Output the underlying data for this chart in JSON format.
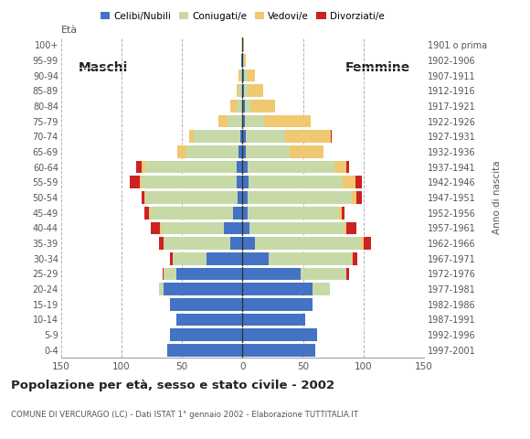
{
  "age_groups": [
    "0-4",
    "5-9",
    "10-14",
    "15-19",
    "20-24",
    "25-29",
    "30-34",
    "35-39",
    "40-44",
    "45-49",
    "50-54",
    "55-59",
    "60-64",
    "65-69",
    "70-74",
    "75-79",
    "80-84",
    "85-89",
    "90-94",
    "95-99",
    "100+"
  ],
  "birth_years": [
    "1997-2001",
    "1992-1996",
    "1987-1991",
    "1982-1986",
    "1977-1981",
    "1972-1976",
    "1967-1971",
    "1962-1966",
    "1957-1961",
    "1952-1956",
    "1947-1951",
    "1942-1946",
    "1937-1941",
    "1932-1936",
    "1927-1931",
    "1922-1926",
    "1917-1921",
    "1912-1916",
    "1907-1911",
    "1902-1906",
    "1901 o prima"
  ],
  "male_celibe": [
    62,
    60,
    55,
    60,
    65,
    55,
    30,
    10,
    15,
    8,
    4,
    5,
    5,
    3,
    2,
    0,
    0,
    0,
    0,
    1,
    0
  ],
  "male_coniugato": [
    0,
    0,
    0,
    0,
    4,
    10,
    28,
    55,
    52,
    68,
    76,
    78,
    75,
    43,
    38,
    12,
    5,
    3,
    2,
    0,
    0
  ],
  "male_vedovo": [
    0,
    0,
    0,
    0,
    0,
    0,
    0,
    0,
    1,
    1,
    1,
    2,
    3,
    8,
    4,
    8,
    5,
    2,
    1,
    0,
    0
  ],
  "male_divorziato": [
    0,
    0,
    0,
    0,
    0,
    1,
    2,
    4,
    8,
    4,
    2,
    8,
    5,
    0,
    0,
    0,
    0,
    0,
    0,
    0,
    0
  ],
  "female_celibe": [
    60,
    62,
    52,
    58,
    58,
    48,
    22,
    10,
    6,
    4,
    4,
    5,
    4,
    3,
    3,
    2,
    2,
    1,
    1,
    0,
    0
  ],
  "female_coniugato": [
    0,
    0,
    0,
    0,
    14,
    38,
    68,
    88,
    78,
    76,
    86,
    78,
    72,
    36,
    32,
    16,
    5,
    4,
    3,
    1,
    0
  ],
  "female_vedovo": [
    0,
    0,
    0,
    0,
    0,
    0,
    1,
    2,
    2,
    2,
    4,
    10,
    10,
    28,
    38,
    38,
    20,
    12,
    6,
    2,
    1
  ],
  "female_divorziato": [
    0,
    0,
    0,
    0,
    0,
    2,
    4,
    6,
    8,
    2,
    5,
    6,
    2,
    0,
    1,
    0,
    0,
    0,
    0,
    0,
    0
  ],
  "colors": {
    "celibe": "#4472c4",
    "coniugato": "#c8d9a8",
    "vedovo": "#f0c870",
    "divorziato": "#cc2222"
  },
  "xlim": 150,
  "title": "Popolazione per età, sesso e stato civile - 2002",
  "subtitle": "COMUNE DI VERCURAGO (LC) - Dati ISTAT 1° gennaio 2002 - Elaborazione TUTTITALIA.IT",
  "ylabel_left": "Età",
  "ylabel_right": "Anno di nascita",
  "label_maschi": "Maschi",
  "label_femmine": "Femmine",
  "legend_labels": [
    "Celibi/Nubili",
    "Coniugati/e",
    "Vedovi/e",
    "Divorziati/e"
  ],
  "bg_color": "#ffffff",
  "grid_color": "#aaaaaa"
}
